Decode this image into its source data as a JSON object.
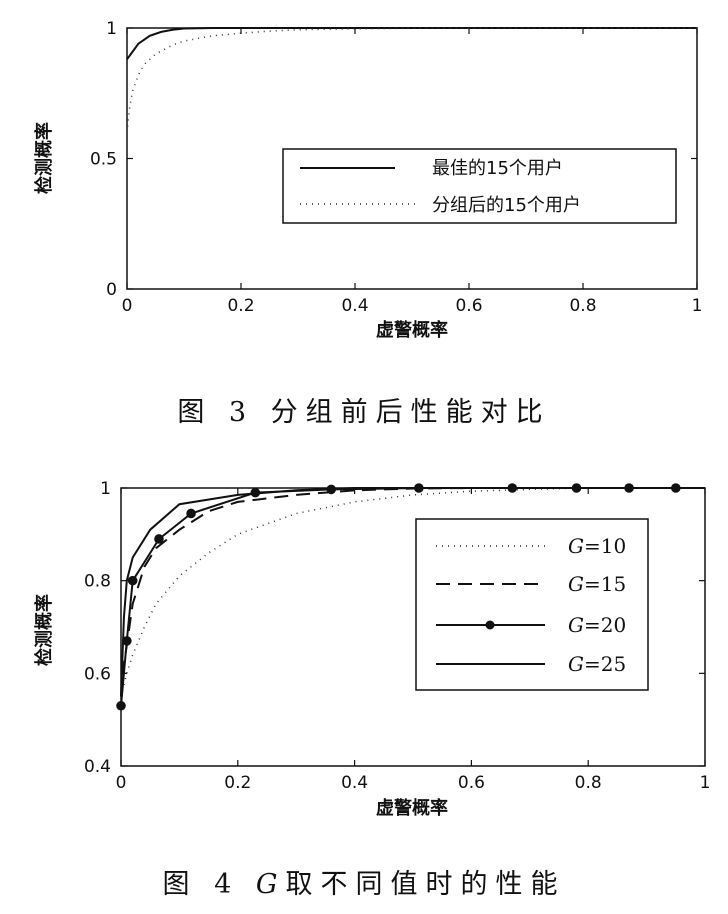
{
  "chart_data": [
    {
      "type": "line",
      "caption": "图 3   分组前后性能对比",
      "xlabel": "虚警概率",
      "ylabel": "检测概率",
      "xlim": [
        0,
        1
      ],
      "ylim": [
        0,
        1
      ],
      "xticks": [
        "0",
        "0.2",
        "0.4",
        "0.6",
        "0.8",
        "1"
      ],
      "yticks": [
        "0",
        "0.5",
        "1"
      ],
      "grid": false,
      "legend_position": "center-right",
      "series": [
        {
          "name": "最佳的15个用户",
          "style": "solid",
          "x": [
            0,
            0.01,
            0.02,
            0.04,
            0.06,
            0.08,
            0.1,
            0.15,
            0.2,
            1
          ],
          "y": [
            0.88,
            0.91,
            0.94,
            0.97,
            0.985,
            0.993,
            0.998,
            1.0,
            1.0,
            1.0
          ]
        },
        {
          "name": "分组后的15个用户",
          "style": "dotted",
          "x": [
            0,
            0.005,
            0.01,
            0.02,
            0.03,
            0.05,
            0.08,
            0.1,
            0.15,
            0.2,
            0.25,
            0.3,
            0.4,
            0.5,
            0.7,
            1
          ],
          "y": [
            0.6,
            0.7,
            0.76,
            0.82,
            0.86,
            0.9,
            0.935,
            0.95,
            0.97,
            0.98,
            0.988,
            0.993,
            0.997,
            0.999,
            1.0,
            1.0
          ]
        }
      ]
    },
    {
      "type": "line",
      "caption_prefix": "图 4 ",
      "caption_italic": "G",
      "caption_suffix": "取不同值时的性能",
      "xlabel": "虚警概率",
      "ylabel": "检测概率",
      "xlim": [
        0,
        1
      ],
      "ylim": [
        0.4,
        1
      ],
      "xticks": [
        "0",
        "0.2",
        "0.4",
        "0.6",
        "0.8",
        "1"
      ],
      "yticks": [
        "0.4",
        "0.6",
        "0.8",
        "1"
      ],
      "grid": false,
      "legend_position": "upper-right",
      "series": [
        {
          "name_var": "G",
          "name_rest": "=10",
          "style": "dotted",
          "x": [
            0,
            0.01,
            0.02,
            0.04,
            0.06,
            0.1,
            0.15,
            0.2,
            0.3,
            0.4,
            0.5,
            0.6,
            0.7,
            0.8,
            1
          ],
          "y": [
            0.55,
            0.6,
            0.64,
            0.7,
            0.75,
            0.81,
            0.86,
            0.9,
            0.945,
            0.97,
            0.985,
            0.993,
            0.997,
            1.0,
            1.0
          ]
        },
        {
          "name_var": "G",
          "name_rest": "=15",
          "style": "dashed",
          "x": [
            0,
            0.005,
            0.01,
            0.02,
            0.04,
            0.06,
            0.1,
            0.15,
            0.2,
            0.3,
            0.4,
            0.5,
            0.6,
            1
          ],
          "y": [
            0.55,
            0.62,
            0.66,
            0.75,
            0.83,
            0.87,
            0.91,
            0.95,
            0.97,
            0.985,
            0.995,
            0.999,
            1.0,
            1.0
          ]
        },
        {
          "name_var": "G",
          "name_rest": "=20",
          "style": "solid-marker",
          "x": [
            0.0,
            0.01,
            0.02,
            0.065,
            0.12,
            0.23,
            0.36,
            0.51,
            0.67,
            0.78,
            0.87,
            0.95
          ],
          "y": [
            0.53,
            0.67,
            0.8,
            0.89,
            0.945,
            0.99,
            0.997,
            1.0,
            1.0,
            1.0,
            1.0,
            1.0
          ]
        },
        {
          "name_var": "G",
          "name_rest": "=25",
          "style": "solid",
          "x": [
            0,
            0.005,
            0.01,
            0.02,
            0.05,
            0.1,
            0.2,
            0.3,
            0.4,
            1
          ],
          "y": [
            0.55,
            0.72,
            0.8,
            0.85,
            0.91,
            0.965,
            0.985,
            0.995,
            1.0,
            1.0
          ]
        }
      ]
    }
  ]
}
